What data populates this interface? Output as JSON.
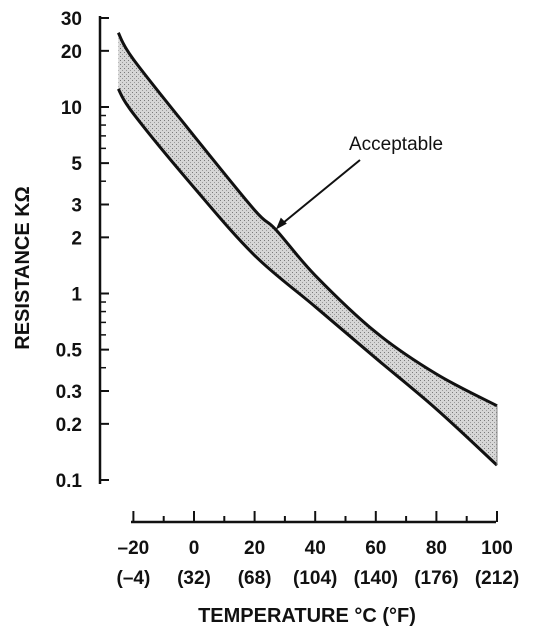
{
  "chart_data": {
    "type": "area",
    "xlabel": "TEMPERATURE °C (°F)",
    "ylabel": "RESISTANCE KΩ",
    "y_scale": "log",
    "xlim": [
      -23,
      100
    ],
    "ylim": [
      0.1,
      30
    ],
    "x_ticks": [
      {
        "c": "–20",
        "f": "(–4)",
        "value": -20
      },
      {
        "c": "0",
        "f": "(32)",
        "value": 0
      },
      {
        "c": "20",
        "f": "(68)",
        "value": 20
      },
      {
        "c": "40",
        "f": "(104)",
        "value": 40
      },
      {
        "c": "60",
        "f": "(140)",
        "value": 60
      },
      {
        "c": "80",
        "f": "(176)",
        "value": 80
      },
      {
        "c": "100",
        "f": "(212)",
        "value": 100
      }
    ],
    "y_ticks": [
      {
        "label": "30",
        "value": 30
      },
      {
        "label": "20",
        "value": 20
      },
      {
        "label": "10",
        "value": 10
      },
      {
        "label": "5",
        "value": 5
      },
      {
        "label": "3",
        "value": 3
      },
      {
        "label": "2",
        "value": 2
      },
      {
        "label": "1",
        "value": 1
      },
      {
        "label": "0.5",
        "value": 0.5
      },
      {
        "label": "0.3",
        "value": 0.3
      },
      {
        "label": "0.2",
        "value": 0.2
      },
      {
        "label": "0.1",
        "value": 0.1
      }
    ],
    "y_minor_ticks": [
      9,
      8,
      7,
      6,
      4,
      0.9,
      0.8,
      0.7,
      0.6,
      0.4
    ],
    "series": [
      {
        "key": "upper",
        "x": [
          -25,
          -20,
          0,
          20,
          27,
          40,
          60,
          80,
          100
        ],
        "values": [
          25,
          18,
          7,
          2.8,
          2.2,
          1.25,
          0.62,
          0.37,
          0.25
        ]
      },
      {
        "key": "lower",
        "x": [
          -25,
          -20,
          0,
          20,
          40,
          60,
          80,
          100
        ],
        "values": [
          12.5,
          9.2,
          3.7,
          1.6,
          0.85,
          0.45,
          0.24,
          0.12
        ]
      }
    ],
    "annotations": [
      {
        "text": "Acceptable",
        "x": 27,
        "y": 2.2
      }
    ],
    "fill_color": "#c8c8c8",
    "line_color": "#111111"
  }
}
